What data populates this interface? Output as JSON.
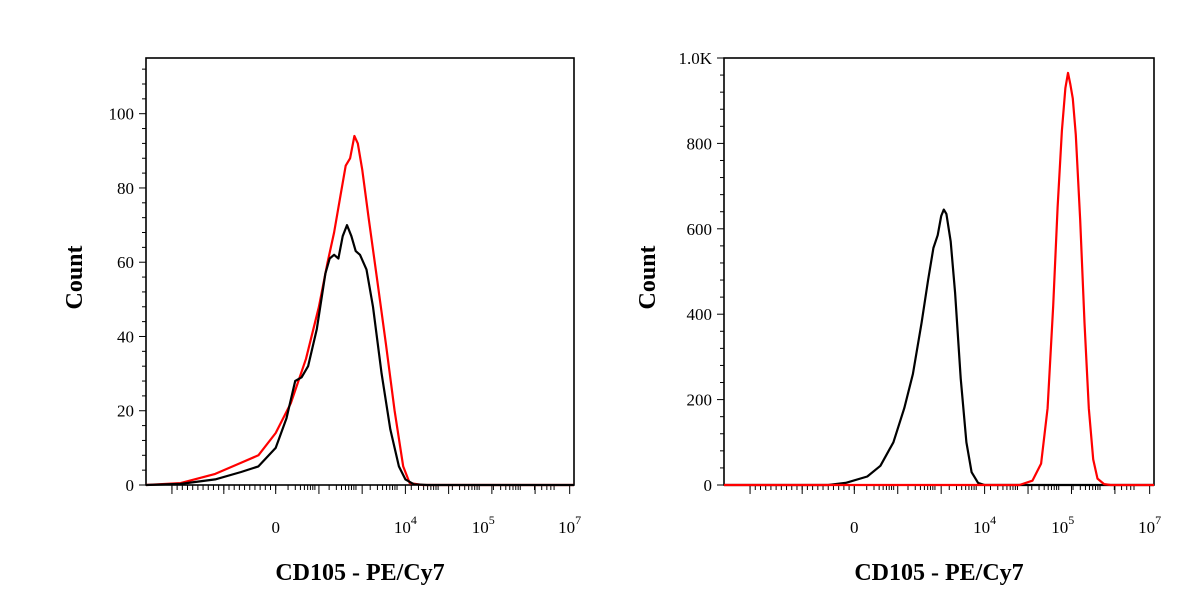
{
  "chart_data": [
    {
      "type": "line",
      "xlabel": "CD105 - PE/Cy7",
      "ylabel": "Count",
      "ylim": [
        0,
        115
      ],
      "y_ticks": [
        "0",
        "20",
        "40",
        "60",
        "80",
        "100"
      ],
      "y_tick_values": [
        0,
        20,
        40,
        60,
        80,
        100
      ],
      "x_ticks": [
        {
          "base": "0",
          "exp": ""
        },
        {
          "base": "10",
          "exp": "4"
        },
        {
          "base": "10",
          "exp": "5"
        },
        {
          "base": "10",
          "exp": "7"
        }
      ],
      "x_scale": "biexponential",
      "grid": false,
      "series": [
        {
          "color": "#ff0000",
          "points": [
            [
              -3,
              0
            ],
            [
              -2.2,
              0.5
            ],
            [
              -1.4,
              3
            ],
            [
              -0.8,
              6
            ],
            [
              -0.4,
              8
            ],
            [
              0,
              14
            ],
            [
              0.35,
              22
            ],
            [
              0.7,
              34
            ],
            [
              1.0,
              48
            ],
            [
              1.2,
              60
            ],
            [
              1.35,
              68
            ],
            [
              1.5,
              78
            ],
            [
              1.62,
              86
            ],
            [
              1.72,
              88
            ],
            [
              1.82,
              94
            ],
            [
              1.9,
              92
            ],
            [
              2.0,
              85
            ],
            [
              2.15,
              72
            ],
            [
              2.35,
              55
            ],
            [
              2.55,
              38
            ],
            [
              2.75,
              20
            ],
            [
              2.95,
              5
            ],
            [
              3.1,
              0.5
            ],
            [
              3.4,
              0
            ],
            [
              6.9,
              0
            ]
          ]
        },
        {
          "color": "#000000",
          "points": [
            [
              -3,
              0
            ],
            [
              -2.2,
              0.3
            ],
            [
              -1.4,
              1.5
            ],
            [
              -0.8,
              3.5
            ],
            [
              -0.4,
              5
            ],
            [
              0,
              10
            ],
            [
              0.25,
              18
            ],
            [
              0.45,
              28
            ],
            [
              0.6,
              29
            ],
            [
              0.75,
              32
            ],
            [
              0.95,
              42
            ],
            [
              1.15,
              57
            ],
            [
              1.25,
              61
            ],
            [
              1.35,
              62
            ],
            [
              1.45,
              61
            ],
            [
              1.55,
              67
            ],
            [
              1.65,
              70
            ],
            [
              1.75,
              67
            ],
            [
              1.85,
              63
            ],
            [
              1.95,
              62
            ],
            [
              2.1,
              58
            ],
            [
              2.25,
              48
            ],
            [
              2.45,
              30
            ],
            [
              2.65,
              15
            ],
            [
              2.85,
              5
            ],
            [
              3.0,
              1.5
            ],
            [
              3.2,
              0.2
            ],
            [
              3.5,
              0
            ],
            [
              6.9,
              0
            ]
          ]
        }
      ]
    },
    {
      "type": "line",
      "xlabel": "CD105 - PE/Cy7",
      "ylabel": "Count",
      "ylim": [
        0,
        1000
      ],
      "y_ticks": [
        "0",
        "200",
        "400",
        "600",
        "800",
        "1.0K"
      ],
      "y_tick_values": [
        0,
        200,
        400,
        600,
        800,
        1000
      ],
      "x_ticks": [
        {
          "base": "0",
          "exp": ""
        },
        {
          "base": "10",
          "exp": "4"
        },
        {
          "base": "10",
          "exp": "5"
        },
        {
          "base": "10",
          "exp": "7"
        }
      ],
      "x_scale": "biexponential",
      "grid": false,
      "series": [
        {
          "color": "#000000",
          "points": [
            [
              -3,
              0
            ],
            [
              -0.6,
              0
            ],
            [
              -0.2,
              5
            ],
            [
              0.3,
              20
            ],
            [
              0.6,
              45
            ],
            [
              0.9,
              100
            ],
            [
              1.15,
              180
            ],
            [
              1.35,
              260
            ],
            [
              1.55,
              380
            ],
            [
              1.7,
              480
            ],
            [
              1.82,
              555
            ],
            [
              1.92,
              585
            ],
            [
              2.0,
              630
            ],
            [
              2.06,
              645
            ],
            [
              2.12,
              635
            ],
            [
              2.22,
              570
            ],
            [
              2.32,
              450
            ],
            [
              2.45,
              250
            ],
            [
              2.58,
              100
            ],
            [
              2.7,
              30
            ],
            [
              2.85,
              5
            ],
            [
              3.0,
              0
            ],
            [
              6.9,
              0
            ]
          ]
        },
        {
          "color": "#ff0000",
          "points": [
            [
              -3,
              0
            ],
            [
              3.8,
              0
            ],
            [
              4.1,
              10
            ],
            [
              4.3,
              50
            ],
            [
              4.45,
              180
            ],
            [
              4.58,
              420
            ],
            [
              4.68,
              650
            ],
            [
              4.78,
              830
            ],
            [
              4.86,
              930
            ],
            [
              4.92,
              965
            ],
            [
              4.97,
              940
            ],
            [
              5.03,
              905
            ],
            [
              5.1,
              820
            ],
            [
              5.2,
              620
            ],
            [
              5.3,
              380
            ],
            [
              5.4,
              180
            ],
            [
              5.5,
              60
            ],
            [
              5.6,
              15
            ],
            [
              5.75,
              2
            ],
            [
              5.9,
              0
            ],
            [
              6.9,
              0
            ]
          ]
        }
      ]
    }
  ]
}
